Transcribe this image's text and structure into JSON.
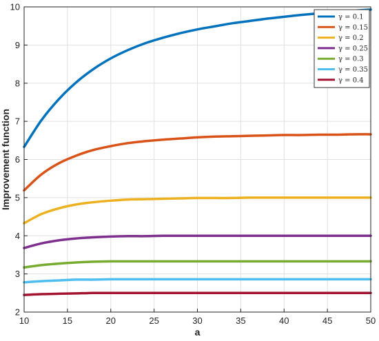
{
  "chart_data": {
    "type": "line",
    "xlabel": "a",
    "ylabel": "Improvement function",
    "xlim": [
      10,
      50
    ],
    "ylim": [
      2,
      10
    ],
    "xticks": [
      "10",
      "15",
      "20",
      "25",
      "30",
      "35",
      "40",
      "45",
      "50"
    ],
    "yticks": [
      "2",
      "3",
      "4",
      "5",
      "6",
      "7",
      "8",
      "9",
      "10"
    ],
    "grid": true,
    "legend_position": "top-right",
    "x": [
      10,
      12,
      14,
      16,
      18,
      20,
      22,
      24,
      26,
      28,
      30,
      32,
      34,
      36,
      38,
      40,
      42,
      44,
      46,
      48,
      50
    ],
    "series": [
      {
        "name": "γ = 0.1",
        "color": "#0072BD",
        "values": [
          6.33,
          7.03,
          7.58,
          8.02,
          8.37,
          8.65,
          8.87,
          9.05,
          9.19,
          9.31,
          9.41,
          9.49,
          9.57,
          9.63,
          9.69,
          9.74,
          9.79,
          9.83,
          9.87,
          9.9,
          9.93
        ]
      },
      {
        "name": "γ = 0.15",
        "color": "#D95319",
        "values": [
          5.19,
          5.61,
          5.9,
          6.1,
          6.25,
          6.35,
          6.43,
          6.48,
          6.52,
          6.55,
          6.58,
          6.6,
          6.61,
          6.62,
          6.63,
          6.64,
          6.64,
          6.65,
          6.65,
          6.66,
          6.66
        ]
      },
      {
        "name": "γ = 0.2",
        "color": "#EDB120",
        "values": [
          4.33,
          4.57,
          4.72,
          4.82,
          4.88,
          4.92,
          4.95,
          4.96,
          4.97,
          4.98,
          4.99,
          4.99,
          4.99,
          5.0,
          5.0,
          5.0,
          5.0,
          5.0,
          5.0,
          5.0,
          5.0
        ]
      },
      {
        "name": "γ = 0.25",
        "color": "#7E2F8E",
        "values": [
          3.68,
          3.8,
          3.88,
          3.93,
          3.96,
          3.98,
          3.99,
          3.99,
          4.0,
          4.0,
          4.0,
          4.0,
          4.0,
          4.0,
          4.0,
          4.0,
          4.0,
          4.0,
          4.0,
          4.0,
          4.0
        ]
      },
      {
        "name": "γ = 0.3",
        "color": "#77AC30",
        "values": [
          3.17,
          3.23,
          3.27,
          3.3,
          3.32,
          3.33,
          3.33,
          3.33,
          3.33,
          3.33,
          3.33,
          3.33,
          3.33,
          3.33,
          3.33,
          3.33,
          3.33,
          3.33,
          3.33,
          3.33,
          3.33
        ]
      },
      {
        "name": "γ = 0.35",
        "color": "#4DBEEE",
        "values": [
          2.78,
          2.81,
          2.83,
          2.85,
          2.85,
          2.86,
          2.86,
          2.86,
          2.86,
          2.86,
          2.86,
          2.86,
          2.86,
          2.86,
          2.86,
          2.86,
          2.86,
          2.86,
          2.86,
          2.86,
          2.86
        ]
      },
      {
        "name": "γ = 0.4",
        "color": "#A2142F",
        "values": [
          2.45,
          2.47,
          2.48,
          2.49,
          2.5,
          2.5,
          2.5,
          2.5,
          2.5,
          2.5,
          2.5,
          2.5,
          2.5,
          2.5,
          2.5,
          2.5,
          2.5,
          2.5,
          2.5,
          2.5,
          2.5
        ]
      }
    ]
  }
}
